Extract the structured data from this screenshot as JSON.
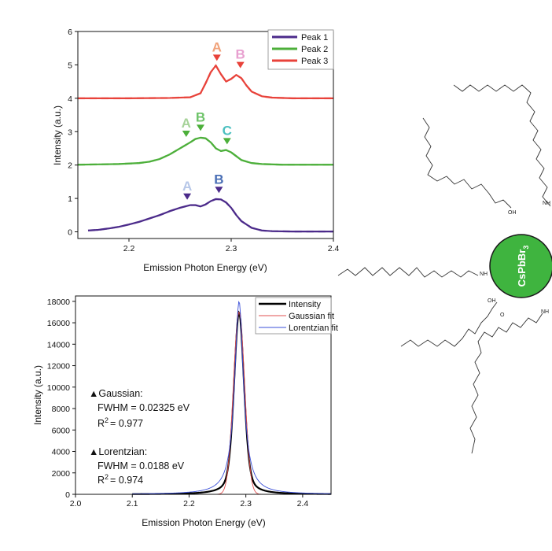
{
  "chart_data": [
    {
      "type": "line",
      "title": "",
      "xlabel": "Emission Photon Energy (eV)",
      "ylabel": "Intensity (a.u.)",
      "xlim": [
        2.15,
        2.4
      ],
      "ylim": [
        -0.2,
        6
      ],
      "x_ticks": [
        2.2,
        2.3,
        2.4
      ],
      "y_ticks": [
        0,
        1,
        2,
        3,
        4,
        5,
        6
      ],
      "legend": {
        "placement": "top-right",
        "entries": [
          {
            "name": "Peak 1",
            "color": "#4b2a8a"
          },
          {
            "name": "Peak 2",
            "color": "#4caf3a"
          },
          {
            "name": "Peak 3",
            "color": "#e8423a"
          }
        ]
      },
      "series": [
        {
          "name": "Peak 1",
          "offset": 0,
          "color": "#4b2a8a",
          "x": [
            2.16,
            2.17,
            2.18,
            2.19,
            2.2,
            2.21,
            2.22,
            2.23,
            2.24,
            2.25,
            2.26,
            2.265,
            2.27,
            2.275,
            2.28,
            2.285,
            2.29,
            2.295,
            2.3,
            2.305,
            2.31,
            2.32,
            2.33,
            2.34,
            2.36,
            2.38,
            2.4
          ],
          "y": [
            0.04,
            0.06,
            0.1,
            0.15,
            0.22,
            0.3,
            0.4,
            0.5,
            0.62,
            0.72,
            0.8,
            0.8,
            0.76,
            0.82,
            0.92,
            0.98,
            0.97,
            0.88,
            0.72,
            0.5,
            0.32,
            0.12,
            0.04,
            0.02,
            0.01,
            0.01,
            0.01
          ]
        },
        {
          "name": "Peak 2",
          "offset": 2,
          "color": "#4caf3a",
          "x": [
            2.15,
            2.17,
            2.19,
            2.21,
            2.22,
            2.23,
            2.24,
            2.25,
            2.26,
            2.265,
            2.27,
            2.275,
            2.28,
            2.285,
            2.29,
            2.295,
            2.3,
            2.31,
            2.32,
            2.33,
            2.35,
            2.37,
            2.4
          ],
          "y": [
            0.01,
            0.02,
            0.03,
            0.06,
            0.1,
            0.18,
            0.32,
            0.5,
            0.68,
            0.78,
            0.82,
            0.8,
            0.68,
            0.5,
            0.42,
            0.45,
            0.38,
            0.15,
            0.06,
            0.03,
            0.01,
            0.01,
            0.01
          ]
        },
        {
          "name": "Peak 3",
          "offset": 4,
          "color": "#e8423a",
          "x": [
            2.15,
            2.2,
            2.24,
            2.26,
            2.27,
            2.275,
            2.28,
            2.285,
            2.29,
            2.295,
            2.3,
            2.305,
            2.31,
            2.315,
            2.32,
            2.33,
            2.34,
            2.36,
            2.4
          ],
          "y": [
            0,
            0,
            0.01,
            0.03,
            0.15,
            0.45,
            0.78,
            0.98,
            0.72,
            0.5,
            0.58,
            0.7,
            0.6,
            0.38,
            0.2,
            0.06,
            0.02,
            0,
            0
          ]
        }
      ],
      "peak_markers": [
        {
          "label": "A",
          "series": "Peak 3",
          "x": 2.286,
          "y": 5.12,
          "text_color": "#f0a27a",
          "marker_color": "#e8423a"
        },
        {
          "label": "B",
          "series": "Peak 3",
          "x": 2.309,
          "y": 4.9,
          "text_color": "#e8a0d0",
          "marker_color": "#e8423a"
        },
        {
          "label": "A",
          "series": "Peak 2",
          "x": 2.256,
          "y": 2.84,
          "text_color": "#a7d39a",
          "marker_color": "#4caf3a"
        },
        {
          "label": "B",
          "series": "Peak 2",
          "x": 2.27,
          "y": 3.02,
          "text_color": "#6fc46a",
          "marker_color": "#4caf3a"
        },
        {
          "label": "C",
          "series": "Peak 2",
          "x": 2.296,
          "y": 2.62,
          "text_color": "#4bc0c0",
          "marker_color": "#4caf3a"
        },
        {
          "label": "A",
          "series": "Peak 1",
          "x": 2.257,
          "y": 0.96,
          "text_color": "#b7c7e8",
          "marker_color": "#4b2a8a"
        },
        {
          "label": "B",
          "series": "Peak 1",
          "x": 2.288,
          "y": 1.16,
          "text_color": "#4a6fb5",
          "marker_color": "#4b2a8a"
        }
      ]
    },
    {
      "type": "line",
      "title": "",
      "xlabel": "Emission Photon Energy (eV)",
      "ylabel": "Intensity (a.u.)",
      "xlim": [
        2.0,
        2.45
      ],
      "ylim": [
        0,
        18500
      ],
      "x_ticks": [
        2.0,
        2.1,
        2.2,
        2.3,
        2.4
      ],
      "y_ticks": [
        0,
        2000,
        4000,
        6000,
        8000,
        10000,
        12000,
        14000,
        16000,
        18000
      ],
      "center": 2.288,
      "legend": {
        "placement": "top-right",
        "entries": [
          {
            "name": "Intensity",
            "color": "#000000"
          },
          {
            "name": "Gaussian fit",
            "color": "#e05050"
          },
          {
            "name": "Lorentzian fit",
            "color": "#3a4fd8"
          }
        ]
      },
      "series": [
        {
          "name": "Intensity",
          "color": "#000000",
          "peak": 17000,
          "shape": "voigt-like"
        },
        {
          "name": "Gaussian fit",
          "color": "#e05050",
          "peak": 17000,
          "fwhm": 0.02325,
          "shape": "gaussian"
        },
        {
          "name": "Lorentzian fit",
          "color": "#3a4fd8",
          "peak": 18000,
          "fwhm": 0.0188,
          "shape": "lorentzian"
        }
      ],
      "annotations": {
        "gaussian_title": "▲Gaussian:",
        "gaussian_fwhm": "FWHM = 0.02325 eV",
        "gaussian_r2": "= 0.977",
        "lorentzian_title": "▲Lorentzian:",
        "lorentzian_fwhm": "FWHM = 0.0188 eV",
        "lorentzian_r2": "= 0.974",
        "r_letter": "R",
        "r_sup": "2"
      }
    }
  ],
  "diagram": {
    "particle_label": "CsPbBr",
    "particle_sub": "3",
    "particle_color": "#3fb43f",
    "ligand_labels": [
      "OH",
      "NH",
      "NH",
      "OH",
      "NH",
      "O"
    ]
  }
}
